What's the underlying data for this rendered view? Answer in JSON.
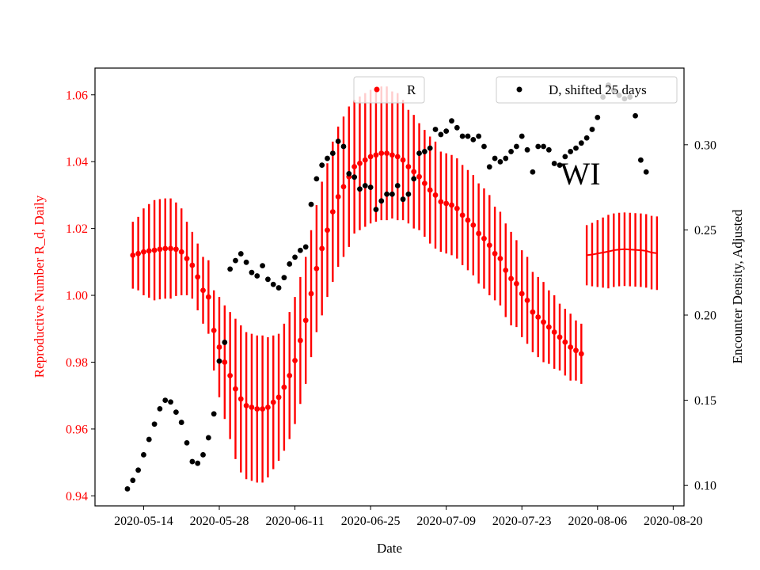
{
  "chart_data": {
    "type": "scatter",
    "xlabel": "Date",
    "ylabel_left": "Reproductive Number R_d, Daily",
    "ylabel_right": "Encounter Density, Adjusted",
    "annotation": "WI",
    "colors": {
      "R": "#ff0000",
      "D": "#000000",
      "left_axis": "#ff0000",
      "right_axis": "#000000"
    },
    "x_range": [
      "2020-05-05",
      "2020-08-22"
    ],
    "x_ticks": [
      "2020-05-14",
      "2020-05-28",
      "2020-06-11",
      "2020-06-25",
      "2020-07-09",
      "2020-07-23",
      "2020-08-06",
      "2020-08-20"
    ],
    "ylim_left": [
      0.937,
      1.068
    ],
    "yticks_left": [
      "0.94",
      "0.96",
      "0.98",
      "1.00",
      "1.02",
      "1.04",
      "1.06"
    ],
    "ylim_right": [
      0.088,
      0.345
    ],
    "yticks_right": [
      "0.10",
      "0.15",
      "0.20",
      "0.25",
      "0.30"
    ],
    "legend": [
      {
        "label": "R",
        "placement": "top-center"
      },
      {
        "label": "D, shifted 25 days",
        "placement": "top-right"
      }
    ],
    "series_R": {
      "name": "R",
      "dates": [
        "2020-05-12",
        "2020-05-13",
        "2020-05-14",
        "2020-05-15",
        "2020-05-16",
        "2020-05-17",
        "2020-05-18",
        "2020-05-19",
        "2020-05-20",
        "2020-05-21",
        "2020-05-22",
        "2020-05-23",
        "2020-05-24",
        "2020-05-25",
        "2020-05-26",
        "2020-05-27",
        "2020-05-28",
        "2020-05-29",
        "2020-05-30",
        "2020-05-31",
        "2020-06-01",
        "2020-06-02",
        "2020-06-03",
        "2020-06-04",
        "2020-06-05",
        "2020-06-06",
        "2020-06-07",
        "2020-06-08",
        "2020-06-09",
        "2020-06-10",
        "2020-06-11",
        "2020-06-12",
        "2020-06-13",
        "2020-06-14",
        "2020-06-15",
        "2020-06-16",
        "2020-06-17",
        "2020-06-18",
        "2020-06-19",
        "2020-06-20",
        "2020-06-21",
        "2020-06-22",
        "2020-06-23",
        "2020-06-24",
        "2020-06-25",
        "2020-06-26",
        "2020-06-27",
        "2020-06-28",
        "2020-06-29",
        "2020-06-30",
        "2020-07-01",
        "2020-07-02",
        "2020-07-03",
        "2020-07-04",
        "2020-07-05",
        "2020-07-06",
        "2020-07-07",
        "2020-07-08",
        "2020-07-09",
        "2020-07-10",
        "2020-07-11",
        "2020-07-12",
        "2020-07-13",
        "2020-07-14",
        "2020-07-15",
        "2020-07-16",
        "2020-07-17",
        "2020-07-18",
        "2020-07-19",
        "2020-07-20",
        "2020-07-21",
        "2020-07-22",
        "2020-07-23",
        "2020-07-24",
        "2020-07-25",
        "2020-07-26",
        "2020-07-27",
        "2020-07-28",
        "2020-07-29",
        "2020-07-30",
        "2020-07-31",
        "2020-08-01",
        "2020-08-02",
        "2020-08-03"
      ],
      "values": [
        1.012,
        1.0125,
        1.013,
        1.0133,
        1.0135,
        1.0138,
        1.014,
        1.014,
        1.0138,
        1.013,
        1.011,
        1.009,
        1.0055,
        1.0015,
        0.9995,
        0.9895,
        0.9845,
        0.98,
        0.976,
        0.972,
        0.969,
        0.967,
        0.9665,
        0.966,
        0.966,
        0.9665,
        0.968,
        0.9695,
        0.9725,
        0.976,
        0.9805,
        0.9865,
        0.9925,
        1.0005,
        1.008,
        1.014,
        1.0195,
        1.025,
        1.0295,
        1.0325,
        1.0355,
        1.0385,
        1.0395,
        1.0405,
        1.0415,
        1.042,
        1.0425,
        1.0425,
        1.042,
        1.0415,
        1.0405,
        1.0385,
        1.037,
        1.0355,
        1.0335,
        1.0315,
        1.03,
        1.028,
        1.0275,
        1.027,
        1.026,
        1.024,
        1.0225,
        1.021,
        1.0185,
        1.017,
        1.015,
        1.0125,
        1.011,
        1.0075,
        1.005,
        1.0035,
        1.0005,
        0.9985,
        0.995,
        0.9935,
        0.992,
        0.9905,
        0.989,
        0.9875,
        0.986,
        0.9845,
        0.9835,
        0.9825
      ],
      "err": [
        0.01,
        0.011,
        0.013,
        0.014,
        0.015,
        0.015,
        0.015,
        0.015,
        0.014,
        0.013,
        0.011,
        0.01,
        0.01,
        0.01,
        0.011,
        0.012,
        0.015,
        0.017,
        0.019,
        0.021,
        0.022,
        0.022,
        0.022,
        0.022,
        0.022,
        0.021,
        0.02,
        0.019,
        0.019,
        0.019,
        0.019,
        0.019,
        0.019,
        0.019,
        0.019,
        0.02,
        0.02,
        0.021,
        0.021,
        0.021,
        0.021,
        0.02,
        0.02,
        0.02,
        0.02,
        0.02,
        0.02,
        0.02,
        0.019,
        0.019,
        0.018,
        0.017,
        0.017,
        0.016,
        0.016,
        0.016,
        0.016,
        0.015,
        0.015,
        0.015,
        0.015,
        0.015,
        0.015,
        0.015,
        0.015,
        0.015,
        0.015,
        0.014,
        0.014,
        0.014,
        0.014,
        0.013,
        0.013,
        0.013,
        0.012,
        0.012,
        0.012,
        0.011,
        0.011,
        0.01,
        0.01,
        0.01,
        0.009,
        0.009
      ]
    },
    "series_R_tail": {
      "name": "R",
      "dates": [
        "2020-08-04",
        "2020-08-05",
        "2020-08-06",
        "2020-08-07",
        "2020-08-08",
        "2020-08-09",
        "2020-08-10",
        "2020-08-11",
        "2020-08-12",
        "2020-08-13",
        "2020-08-14",
        "2020-08-15",
        "2020-08-16",
        "2020-08-17"
      ],
      "values": [
        1.012,
        1.0122,
        1.0125,
        1.0128,
        1.0131,
        1.0135,
        1.0137,
        1.0138,
        1.0137,
        1.0136,
        1.0135,
        1.0133,
        1.0128,
        1.0126
      ],
      "err": [
        0.009,
        0.0095,
        0.01,
        0.0105,
        0.011,
        0.011,
        0.011,
        0.011,
        0.011,
        0.011,
        0.011,
        0.011,
        0.011,
        0.011
      ]
    },
    "series_D": {
      "name": "D, shifted 25 days",
      "dates": [
        "2020-05-11",
        "2020-05-12",
        "2020-05-13",
        "2020-05-14",
        "2020-05-15",
        "2020-05-16",
        "2020-05-17",
        "2020-05-18",
        "2020-05-19",
        "2020-05-20",
        "2020-05-21",
        "2020-05-22",
        "2020-05-23",
        "2020-05-24",
        "2020-05-25",
        "2020-05-26",
        "2020-05-27",
        "2020-05-28",
        "2020-05-29",
        "2020-05-30",
        "2020-05-31",
        "2020-06-01",
        "2020-06-02",
        "2020-06-03",
        "2020-06-04",
        "2020-06-05",
        "2020-06-06",
        "2020-06-07",
        "2020-06-08",
        "2020-06-09",
        "2020-06-10",
        "2020-06-11",
        "2020-06-12",
        "2020-06-13",
        "2020-06-14",
        "2020-06-15",
        "2020-06-16",
        "2020-06-17",
        "2020-06-18",
        "2020-06-19",
        "2020-06-20",
        "2020-06-21",
        "2020-06-22",
        "2020-06-23",
        "2020-06-24",
        "2020-06-25",
        "2020-06-26",
        "2020-06-27",
        "2020-06-28",
        "2020-06-29",
        "2020-06-30",
        "2020-07-01",
        "2020-07-02",
        "2020-07-03",
        "2020-07-04",
        "2020-07-05",
        "2020-07-06",
        "2020-07-07",
        "2020-07-08",
        "2020-07-09",
        "2020-07-10",
        "2020-07-11",
        "2020-07-12",
        "2020-07-13",
        "2020-07-14",
        "2020-07-15",
        "2020-07-16",
        "2020-07-17",
        "2020-07-18",
        "2020-07-19",
        "2020-07-20",
        "2020-07-21",
        "2020-07-22",
        "2020-07-23",
        "2020-07-24",
        "2020-07-25",
        "2020-07-26",
        "2020-07-27",
        "2020-07-28",
        "2020-07-29",
        "2020-07-30",
        "2020-07-31",
        "2020-08-01",
        "2020-08-02",
        "2020-08-03",
        "2020-08-04",
        "2020-08-05",
        "2020-08-06",
        "2020-08-07",
        "2020-08-08",
        "2020-08-09",
        "2020-08-10",
        "2020-08-11",
        "2020-08-12",
        "2020-08-13",
        "2020-08-14",
        "2020-08-15"
      ],
      "values": [
        0.098,
        0.103,
        0.109,
        0.118,
        0.127,
        0.136,
        0.145,
        0.15,
        0.149,
        0.143,
        0.137,
        0.125,
        0.114,
        0.113,
        0.118,
        0.128,
        0.142,
        0.173,
        0.184,
        0.227,
        0.232,
        0.236,
        0.231,
        0.225,
        0.223,
        0.229,
        0.221,
        0.218,
        0.216,
        0.222,
        0.23,
        0.234,
        0.238,
        0.24,
        0.265,
        0.28,
        0.288,
        0.292,
        0.295,
        0.302,
        0.299,
        0.283,
        0.281,
        0.274,
        0.276,
        0.275,
        0.262,
        0.267,
        0.271,
        0.271,
        0.276,
        0.268,
        0.271,
        0.28,
        0.295,
        0.296,
        0.298,
        0.309,
        0.306,
        0.308,
        0.314,
        0.31,
        0.305,
        0.305,
        0.303,
        0.305,
        0.299,
        0.287,
        0.292,
        0.29,
        0.292,
        0.296,
        0.299,
        0.305,
        0.297,
        0.284,
        0.299,
        0.299,
        0.297,
        0.289,
        0.288,
        0.293,
        0.296,
        0.298,
        0.301,
        0.304,
        0.309,
        0.316,
        0.328,
        0.335,
        0.332,
        0.329,
        0.327,
        0.328,
        0.317,
        0.291,
        0.284
      ]
    }
  }
}
